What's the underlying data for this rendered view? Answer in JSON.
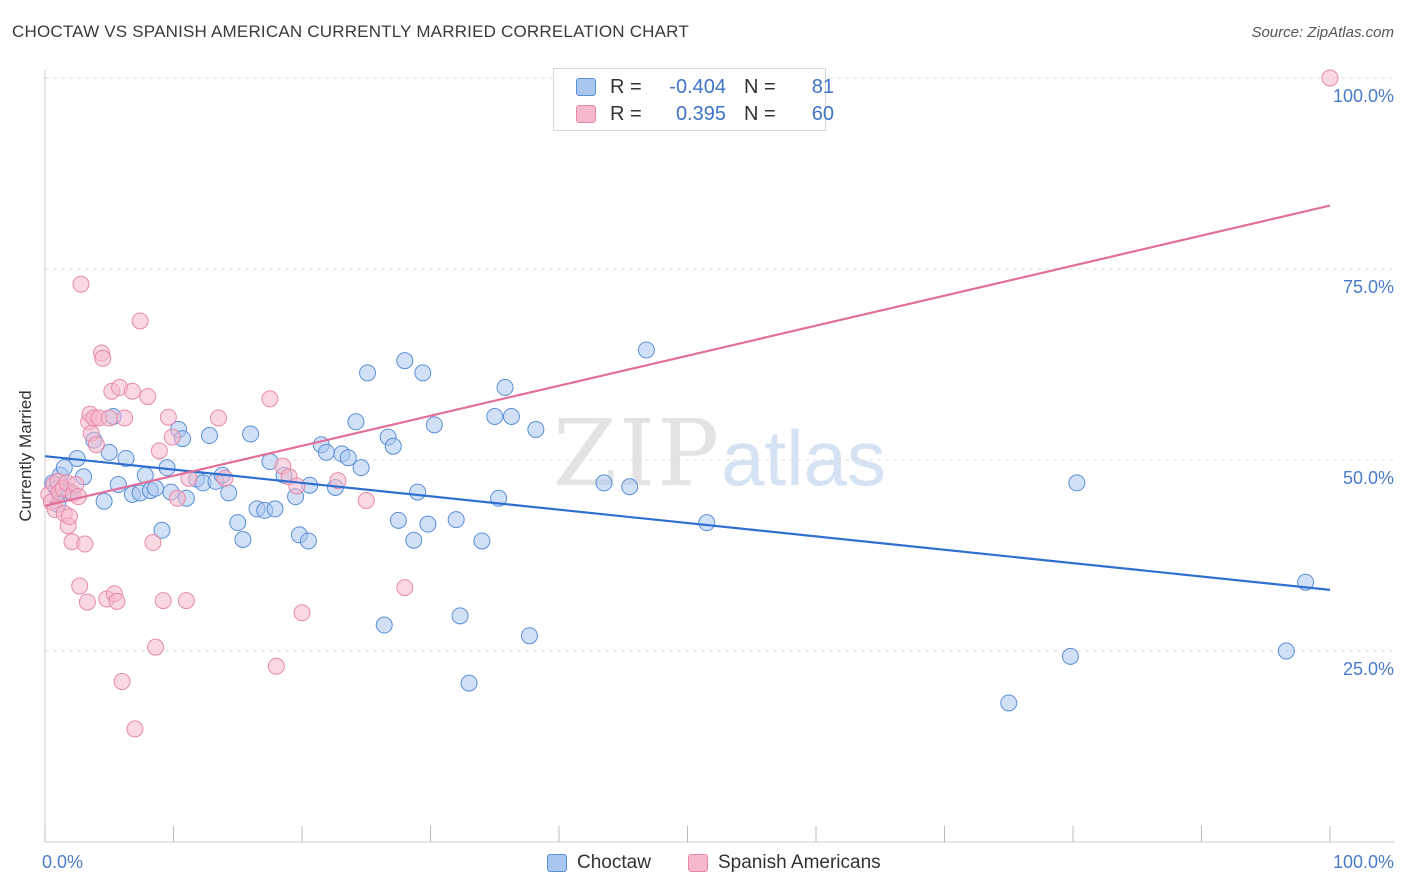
{
  "title": "CHOCTAW VS SPANISH AMERICAN CURRENTLY MARRIED CORRELATION CHART",
  "source": "Source: ZipAtlas.com",
  "watermark": {
    "zip": "ZIP",
    "atlas": "atlas"
  },
  "legend": {
    "rows": [
      {
        "r_label": "R =",
        "r_value": "-0.404",
        "n_label": "N =",
        "n_value": "81"
      },
      {
        "r_label": "R =",
        "r_value": "0.395",
        "n_label": "N =",
        "n_value": "60"
      }
    ],
    "bottom": [
      "Choctaw",
      "Spanish Americans"
    ]
  },
  "colors": {
    "choctaw_fill": "#a9c6ee",
    "choctaw_stroke": "#5b8fd6",
    "choctaw_line": "#2f6fd0",
    "spanish_fill": "#f5b8cc",
    "spanish_stroke": "#e58aa8",
    "spanish_line": "#e0709a",
    "tick_text": "#4a7cc9",
    "grid": "#dddddd"
  },
  "chart_data": {
    "type": "scatter",
    "title": "CHOCTAW VS SPANISH AMERICAN CURRENTLY MARRIED CORRELATION CHART",
    "xlabel": "",
    "ylabel": "Currently Married",
    "xlim": [
      0,
      100
    ],
    "ylim": [
      0,
      102
    ],
    "x_tick_labels": [
      "0.0%",
      "100.0%"
    ],
    "y_ticks": [
      25,
      50,
      75,
      100
    ],
    "y_tick_labels": [
      "25.0%",
      "50.0%",
      "75.0%",
      "100.0%"
    ],
    "series": [
      {
        "name": "Choctaw",
        "R": -0.404,
        "N": 81,
        "trend": {
          "x": [
            0,
            100
          ],
          "y": [
            50.5,
            33.0
          ]
        },
        "points": [
          [
            0.6,
            47.0
          ],
          [
            0.9,
            46.2
          ],
          [
            1.2,
            48.0
          ],
          [
            1.5,
            49.0
          ],
          [
            1.8,
            46.0
          ],
          [
            2.5,
            50.2
          ],
          [
            3.0,
            47.8
          ],
          [
            3.8,
            52.6
          ],
          [
            4.6,
            44.6
          ],
          [
            5.0,
            51.0
          ],
          [
            5.3,
            55.7
          ],
          [
            5.7,
            46.8
          ],
          [
            6.3,
            50.2
          ],
          [
            6.8,
            45.5
          ],
          [
            7.4,
            45.7
          ],
          [
            7.8,
            48.0
          ],
          [
            8.2,
            46.0
          ],
          [
            8.6,
            46.3
          ],
          [
            9.1,
            40.8
          ],
          [
            9.5,
            49.0
          ],
          [
            9.8,
            45.8
          ],
          [
            10.4,
            54.0
          ],
          [
            10.7,
            52.8
          ],
          [
            11.0,
            45.0
          ],
          [
            11.8,
            47.5
          ],
          [
            12.3,
            47.0
          ],
          [
            12.8,
            53.2
          ],
          [
            13.3,
            47.2
          ],
          [
            13.8,
            48.0
          ],
          [
            14.3,
            45.7
          ],
          [
            15.0,
            41.8
          ],
          [
            15.4,
            39.6
          ],
          [
            16.0,
            53.4
          ],
          [
            16.5,
            43.6
          ],
          [
            17.1,
            43.4
          ],
          [
            17.5,
            49.8
          ],
          [
            17.9,
            43.6
          ],
          [
            18.6,
            48.0
          ],
          [
            19.5,
            45.2
          ],
          [
            19.8,
            40.2
          ],
          [
            20.5,
            39.4
          ],
          [
            20.6,
            46.7
          ],
          [
            21.5,
            52.0
          ],
          [
            21.9,
            51.0
          ],
          [
            22.6,
            46.4
          ],
          [
            23.1,
            50.8
          ],
          [
            23.6,
            50.3
          ],
          [
            24.2,
            55.0
          ],
          [
            24.6,
            49.0
          ],
          [
            25.1,
            61.4
          ],
          [
            26.4,
            28.4
          ],
          [
            26.7,
            53.0
          ],
          [
            27.1,
            51.8
          ],
          [
            27.5,
            42.1
          ],
          [
            28.0,
            63.0
          ],
          [
            28.7,
            39.5
          ],
          [
            29.0,
            45.8
          ],
          [
            29.4,
            61.4
          ],
          [
            29.8,
            41.6
          ],
          [
            30.3,
            54.6
          ],
          [
            32.0,
            42.2
          ],
          [
            32.3,
            29.6
          ],
          [
            33.0,
            20.8
          ],
          [
            34.0,
            39.4
          ],
          [
            35.0,
            55.7
          ],
          [
            35.3,
            45.0
          ],
          [
            35.8,
            59.5
          ],
          [
            36.3,
            55.7
          ],
          [
            37.7,
            27.0
          ],
          [
            38.2,
            54.0
          ],
          [
            43.5,
            47.0
          ],
          [
            45.5,
            46.5
          ],
          [
            46.8,
            64.4
          ],
          [
            51.5,
            41.8
          ],
          [
            75.0,
            18.2
          ],
          [
            79.8,
            24.3
          ],
          [
            80.3,
            47.0
          ],
          [
            96.6,
            25.0
          ],
          [
            98.1,
            34.0
          ],
          [
            2.0,
            45.8
          ],
          [
            1.0,
            44.2
          ]
        ]
      },
      {
        "name": "Spanish Americans",
        "R": 0.395,
        "N": 60,
        "trend": {
          "x": [
            0,
            100
          ],
          "y": [
            44.0,
            83.3
          ]
        },
        "points": [
          [
            0.3,
            45.5
          ],
          [
            0.5,
            44.5
          ],
          [
            0.7,
            46.8
          ],
          [
            0.8,
            43.5
          ],
          [
            1.0,
            47.2
          ],
          [
            1.1,
            45.8
          ],
          [
            1.4,
            46.3
          ],
          [
            1.5,
            43.0
          ],
          [
            1.7,
            47.0
          ],
          [
            1.8,
            41.4
          ],
          [
            1.9,
            42.6
          ],
          [
            2.1,
            39.3
          ],
          [
            2.2,
            45.6
          ],
          [
            2.4,
            46.8
          ],
          [
            2.6,
            45.2
          ],
          [
            2.7,
            33.5
          ],
          [
            2.8,
            73.0
          ],
          [
            3.1,
            39.0
          ],
          [
            3.3,
            31.4
          ],
          [
            3.4,
            55.0
          ],
          [
            3.5,
            56.0
          ],
          [
            3.6,
            53.5
          ],
          [
            3.8,
            55.5
          ],
          [
            4.0,
            52.0
          ],
          [
            4.2,
            55.5
          ],
          [
            4.4,
            64.0
          ],
          [
            4.5,
            63.3
          ],
          [
            4.8,
            31.8
          ],
          [
            5.0,
            55.5
          ],
          [
            5.2,
            59.0
          ],
          [
            5.4,
            32.5
          ],
          [
            5.6,
            31.5
          ],
          [
            5.8,
            59.5
          ],
          [
            6.0,
            21.0
          ],
          [
            6.2,
            55.5
          ],
          [
            6.8,
            59.0
          ],
          [
            7.0,
            14.8
          ],
          [
            7.4,
            68.2
          ],
          [
            8.0,
            58.3
          ],
          [
            8.4,
            39.2
          ],
          [
            8.6,
            25.5
          ],
          [
            8.9,
            51.2
          ],
          [
            9.2,
            31.6
          ],
          [
            9.6,
            55.6
          ],
          [
            9.9,
            53.0
          ],
          [
            10.3,
            45.0
          ],
          [
            11.0,
            31.6
          ],
          [
            11.2,
            47.6
          ],
          [
            13.5,
            55.5
          ],
          [
            14.0,
            47.6
          ],
          [
            17.5,
            58.0
          ],
          [
            18.0,
            23.0
          ],
          [
            18.5,
            49.2
          ],
          [
            19.0,
            47.8
          ],
          [
            19.6,
            46.6
          ],
          [
            20.0,
            30.0
          ],
          [
            22.8,
            47.3
          ],
          [
            25.0,
            44.7
          ],
          [
            28.0,
            33.3
          ],
          [
            100.0,
            100.0
          ]
        ]
      }
    ]
  }
}
